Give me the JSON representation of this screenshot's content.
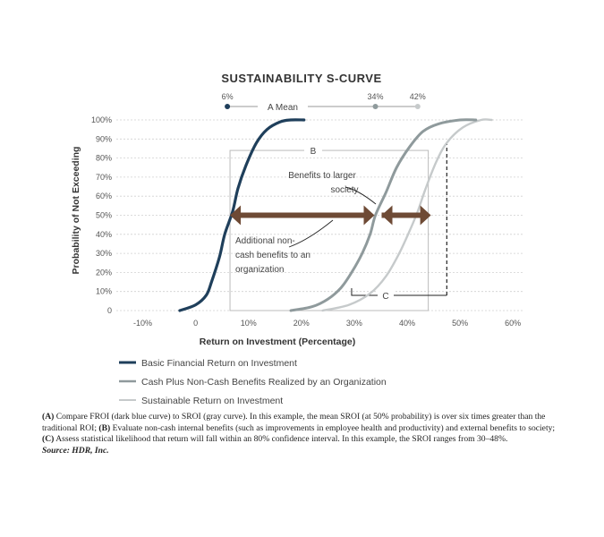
{
  "chart_data": {
    "type": "line",
    "title": "SUSTAINABILITY S-CURVE",
    "xlabel": "Return on Investment (Percentage)",
    "ylabel": "Probability of Not Exceeding",
    "xlim": [
      -15,
      62
    ],
    "ylim": [
      0,
      100
    ],
    "x_ticks": [
      -10,
      0,
      10,
      20,
      30,
      40,
      50,
      60
    ],
    "x_tick_labels": [
      "-10%",
      "0",
      "10%",
      "20%",
      "30%",
      "40%",
      "50%",
      "60%"
    ],
    "y_ticks": [
      0,
      10,
      20,
      30,
      40,
      50,
      60,
      70,
      80,
      90,
      100
    ],
    "y_tick_labels": [
      "0",
      "10%",
      "20%",
      "30%",
      "40%",
      "50%",
      "60%",
      "70%",
      "80%",
      "90%",
      "100%"
    ],
    "grid": true,
    "legend_position": "bottom",
    "series": [
      {
        "name": "Basic Financial Return on Investment",
        "color": "#1f3f5b",
        "x": [
          -3,
          0,
          2,
          3,
          4.5,
          5.5,
          7,
          8,
          9.5,
          11.5,
          13.5,
          16,
          18,
          20.5
        ],
        "y": [
          0,
          3,
          8,
          15,
          28,
          40,
          52,
          64,
          76,
          88,
          95,
          99,
          100,
          100
        ]
      },
      {
        "name": "Cash Plus Non-Cash Benefits Realized by an Organization",
        "color": "#8f9a9c",
        "x": [
          18,
          22,
          25,
          27.5,
          29.5,
          31.5,
          33,
          34,
          36,
          38,
          40.5,
          43,
          46,
          50,
          53
        ],
        "y": [
          0,
          2,
          6,
          12,
          20,
          30,
          40,
          50,
          62,
          75,
          86,
          94,
          98,
          100,
          100
        ]
      },
      {
        "name": "Sustainable Return on Investment",
        "color": "#c6cacb",
        "x": [
          24,
          29,
          33,
          36,
          38.5,
          40.5,
          42,
          43.5,
          45.5,
          47.5,
          50.5,
          54,
          56
        ],
        "y": [
          0,
          3,
          9,
          18,
          30,
          42,
          52,
          64,
          78,
          88,
          96,
          100,
          100
        ]
      }
    ],
    "mean_markers": {
      "label": "A Mean",
      "points": [
        {
          "x": 6,
          "label": "6%"
        },
        {
          "x": 34,
          "label": "34%"
        },
        {
          "x": 42,
          "label": "42%"
        }
      ]
    },
    "annotations": {
      "box_b_label": "B",
      "box_c_label": "C",
      "benefits_larger": [
        "Benefits to larger",
        "society"
      ],
      "additional": [
        "Additional non-",
        "cash benefits to an",
        "organization"
      ]
    }
  },
  "caption": {
    "a_label": "(A)",
    "a_text": " Compare FROI (dark blue curve) to SROI (gray curve). In this example, the mean SROI (at 50% probability) is over six times greater than the traditional ROI; ",
    "b_label": "(B)",
    "b_text": " Evaluate non-cash internal benefits (such as improvements in employee health and productivity) and external benefits to society; ",
    "c_label": "(C)",
    "c_text": " Assess statistical likelihood that return will fall within an 80% confidence interval. In this example, the SROI ranges from 30–48%.",
    "source": "Source: HDR, Inc."
  }
}
